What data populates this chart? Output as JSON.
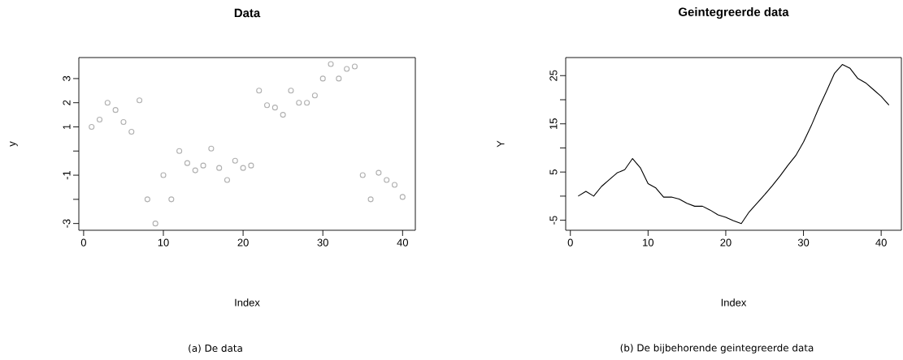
{
  "chart_data": [
    {
      "type": "scatter",
      "title": "Data",
      "xlabel": "Index",
      "ylabel": "y",
      "annotations": [
        "(a) De data"
      ],
      "x": [
        1,
        2,
        3,
        4,
        5,
        6,
        7,
        8,
        9,
        10,
        11,
        12,
        13,
        14,
        15,
        16,
        17,
        18,
        19,
        20,
        21,
        22,
        23,
        24,
        25,
        26,
        27,
        28,
        29,
        30,
        31,
        32,
        33,
        34,
        35,
        36,
        37,
        38,
        39,
        40
      ],
      "values": [
        1.0,
        1.3,
        2.0,
        1.7,
        1.2,
        0.8,
        2.1,
        -2.0,
        -3.0,
        -1.0,
        -2.0,
        0.0,
        -0.5,
        -0.8,
        -0.6,
        0.1,
        -0.7,
        -1.2,
        -0.4,
        -0.7,
        -0.6,
        2.5,
        1.9,
        1.8,
        1.5,
        2.5,
        2.0,
        2.0,
        2.3,
        3.0,
        3.6,
        3.0,
        3.4,
        3.5,
        -1.0,
        -2.0,
        -0.9,
        -1.2,
        -1.4,
        -1.9
      ],
      "color": "#b0b0b0",
      "marker": "circle",
      "xlim": [
        -0.6,
        41.6
      ],
      "ylim": [
        -3.28,
        3.87
      ],
      "xticks": [
        0,
        10,
        20,
        30,
        40
      ],
      "yticks": [
        -3,
        {
          "value": -2,
          "label": null
        },
        -1,
        {
          "value": 0,
          "label": null
        },
        1,
        2,
        3
      ]
    },
    {
      "type": "line",
      "title": "Geintegreerde data",
      "xlabel": "Index",
      "ylabel": "Y",
      "annotations": [
        "(b) De bijbehorende geintegreerde data"
      ],
      "x": [
        1,
        2,
        3,
        4,
        5,
        6,
        7,
        8,
        9,
        10,
        11,
        12,
        13,
        14,
        15,
        16,
        17,
        18,
        19,
        20,
        21,
        22,
        23,
        24,
        25,
        26,
        27,
        28,
        29,
        30,
        31,
        32,
        33,
        34,
        35,
        36,
        37,
        38,
        39,
        40,
        41
      ],
      "values": [
        0,
        1.0,
        0,
        2.0,
        3.4,
        4.8,
        5.5,
        7.8,
        5.9,
        2.6,
        1.7,
        -0.2,
        -0.2,
        -0.6,
        -1.5,
        -2.1,
        -2.1,
        -2.9,
        -3.9,
        -4.4,
        -5.1,
        -5.7,
        -3.3,
        -1.5,
        0.3,
        2.2,
        4.2,
        6.4,
        8.4,
        11.2,
        14.6,
        18.4,
        21.9,
        25.5,
        27.3,
        26.5,
        24.4,
        23.5,
        22.1,
        20.7,
        18.9
      ],
      "color": "#000000",
      "line_style": "solid",
      "xlim": [
        -0.6,
        42.6
      ],
      "ylim": [
        -7.08,
        28.75
      ],
      "xticks": [
        0,
        10,
        20,
        30,
        40
      ],
      "yticks": [
        -5,
        {
          "value": 0,
          "label": null
        },
        5,
        {
          "value": 10,
          "label": null
        },
        15,
        {
          "value": 20,
          "label": null
        },
        25
      ]
    }
  ]
}
